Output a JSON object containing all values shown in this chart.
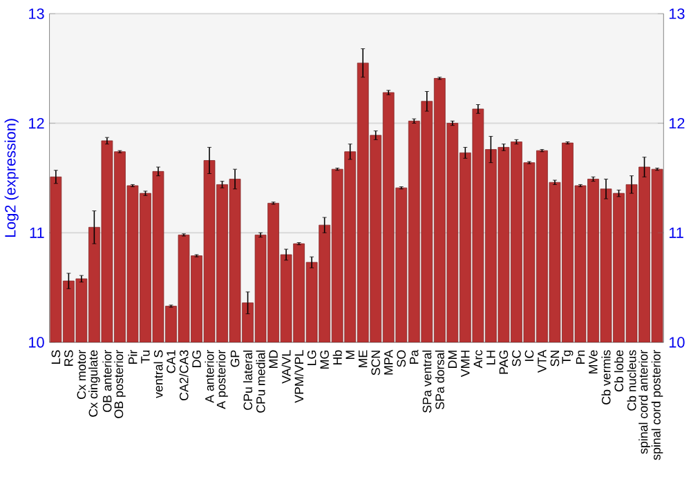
{
  "chart_data": {
    "type": "bar",
    "ylabel": "Log2 (expression)",
    "categories": [
      "LS",
      "RS",
      "Cx motor",
      "Cx cingulate",
      "OB anterior",
      "OB posterior",
      "Pir",
      "Tu",
      "ventral S",
      "CA1",
      "CA2/CA3",
      "DG",
      "A anterior",
      "A posterior",
      "GP",
      "CPu lateral",
      "CPu medial",
      "MD",
      "VA/VL",
      "VPM/VPL",
      "LG",
      "MG",
      "Hb",
      "M",
      "ME",
      "SCN",
      "MPA",
      "SO",
      "Pa",
      "SPa ventral",
      "SPa dorsal",
      "DM",
      "VMH",
      "Arc",
      "LH",
      "PAG",
      "SC",
      "IC",
      "VTA",
      "SN",
      "Tg",
      "Pn",
      "MVe",
      "Cb vermis",
      "Cb lobe",
      "Cb nucleus",
      "spinal cord anterior",
      "spinal cord posterior"
    ],
    "values": [
      11.51,
      10.56,
      10.58,
      11.05,
      11.84,
      11.74,
      11.43,
      11.36,
      11.56,
      10.33,
      10.98,
      10.79,
      11.66,
      11.44,
      11.49,
      10.36,
      10.98,
      11.27,
      10.8,
      10.9,
      10.73,
      11.07,
      11.58,
      11.74,
      12.55,
      11.89,
      12.28,
      11.41,
      12.02,
      12.2,
      12.41,
      12.0,
      11.73,
      12.13,
      11.76,
      11.78,
      11.83,
      11.64,
      11.75,
      11.46,
      11.82,
      11.43,
      11.49,
      11.4,
      11.36,
      11.44,
      11.6,
      11.58
    ],
    "errors": [
      0.06,
      0.07,
      0.03,
      0.15,
      0.03,
      0.01,
      0.01,
      0.02,
      0.04,
      0.01,
      0.01,
      0.01,
      0.12,
      0.03,
      0.09,
      0.1,
      0.02,
      0.01,
      0.05,
      0.01,
      0.05,
      0.07,
      0.01,
      0.07,
      0.13,
      0.04,
      0.02,
      0.01,
      0.02,
      0.09,
      0.01,
      0.02,
      0.05,
      0.04,
      0.12,
      0.03,
      0.02,
      0.01,
      0.01,
      0.02,
      0.01,
      0.01,
      0.02,
      0.09,
      0.03,
      0.08,
      0.09,
      0.01
    ],
    "color": "#b83232",
    "ylim": [
      10,
      13
    ],
    "yticks": [
      10,
      11,
      12,
      13
    ],
    "y2lim": [
      10,
      13
    ],
    "y2ticks": [
      10,
      11,
      12,
      13
    ],
    "grid": "y"
  }
}
